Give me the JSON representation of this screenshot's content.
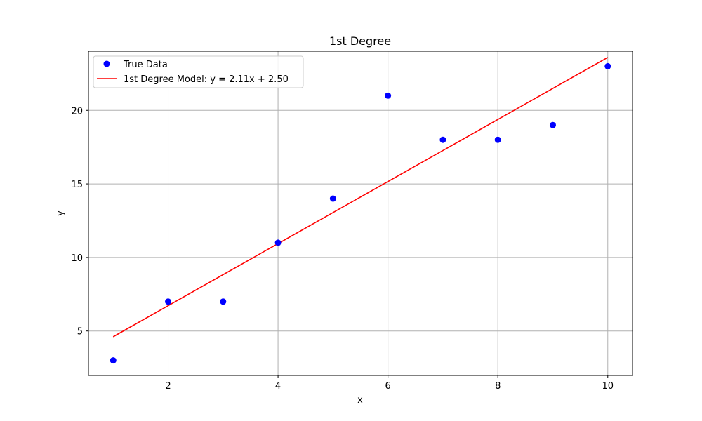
{
  "chart_data": {
    "type": "scatter",
    "title": "1st Degree",
    "xlabel": "x",
    "ylabel": "y",
    "xlim": [
      0.55,
      10.45
    ],
    "ylim": [
      1.98,
      24.02
    ],
    "x_ticks": [
      2,
      4,
      6,
      8,
      10
    ],
    "y_ticks": [
      5,
      10,
      15,
      20
    ],
    "grid": true,
    "legend_position": "top-left",
    "series": [
      {
        "name": "True Data",
        "kind": "scatter",
        "color": "#0000ff",
        "x": [
          1,
          2,
          3,
          4,
          5,
          6,
          7,
          8,
          9,
          10
        ],
        "y": [
          3,
          7,
          7,
          11,
          14,
          21,
          18,
          18,
          19,
          23
        ]
      },
      {
        "name": "1st Degree Model: y = 2.11x + 2.50",
        "kind": "line",
        "color": "#ff0000",
        "x": [
          1,
          10
        ],
        "y": [
          4.61,
          23.6
        ]
      }
    ]
  }
}
